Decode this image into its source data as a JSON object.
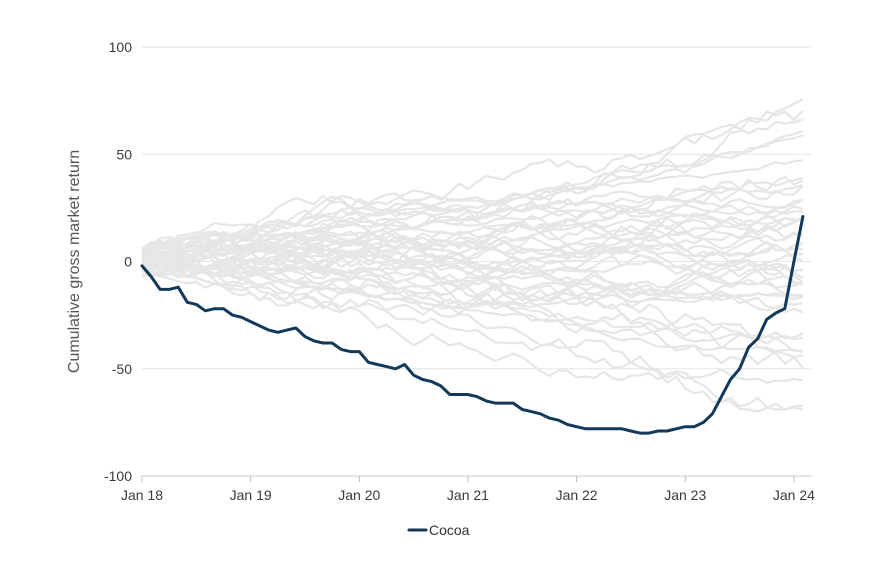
{
  "chart_data": {
    "type": "line",
    "title": "",
    "xlabel": "",
    "ylabel": "Cumulative gross market return",
    "x_ticks": [
      "Jan 18",
      "Jan 19",
      "Jan 20",
      "Jan 21",
      "Jan 22",
      "Jan 23",
      "Jan 24"
    ],
    "y_ticks": [
      100,
      50,
      0,
      -50,
      -100
    ],
    "xlim": [
      "2018-01",
      "2024-03"
    ],
    "ylim": [
      -100,
      100
    ],
    "grid": "horizontal",
    "legend": {
      "position": "bottom-center",
      "entries": [
        "Cocoa"
      ]
    },
    "colors": {
      "highlight": "#12385a",
      "background_series": "#e6e6e6",
      "grid": "#e6e6e6"
    },
    "background_series_note_count": 45,
    "series": [
      {
        "name": "Cocoa",
        "highlight": true,
        "points": [
          [
            "2018-01",
            -2
          ],
          [
            "2018-02",
            -7
          ],
          [
            "2018-03",
            -13
          ],
          [
            "2018-04",
            -13
          ],
          [
            "2018-05",
            -12
          ],
          [
            "2018-06",
            -19
          ],
          [
            "2018-07",
            -20
          ],
          [
            "2018-08",
            -23
          ],
          [
            "2018-09",
            -22
          ],
          [
            "2018-10",
            -22
          ],
          [
            "2018-11",
            -25
          ],
          [
            "2018-12",
            -26
          ],
          [
            "2019-01",
            -28
          ],
          [
            "2019-02",
            -30
          ],
          [
            "2019-03",
            -32
          ],
          [
            "2019-04",
            -33
          ],
          [
            "2019-05",
            -32
          ],
          [
            "2019-06",
            -31
          ],
          [
            "2019-07",
            -35
          ],
          [
            "2019-08",
            -37
          ],
          [
            "2019-09",
            -38
          ],
          [
            "2019-10",
            -38
          ],
          [
            "2019-11",
            -41
          ],
          [
            "2019-12",
            -42
          ],
          [
            "2020-01",
            -42
          ],
          [
            "2020-02",
            -47
          ],
          [
            "2020-03",
            -48
          ],
          [
            "2020-04",
            -49
          ],
          [
            "2020-05",
            -50
          ],
          [
            "2020-06",
            -48
          ],
          [
            "2020-07",
            -53
          ],
          [
            "2020-08",
            -55
          ],
          [
            "2020-09",
            -56
          ],
          [
            "2020-10",
            -58
          ],
          [
            "2020-11",
            -62
          ],
          [
            "2020-12",
            -62
          ],
          [
            "2021-01",
            -62
          ],
          [
            "2021-02",
            -63
          ],
          [
            "2021-03",
            -65
          ],
          [
            "2021-04",
            -66
          ],
          [
            "2021-05",
            -66
          ],
          [
            "2021-06",
            -66
          ],
          [
            "2021-07",
            -69
          ],
          [
            "2021-08",
            -70
          ],
          [
            "2021-09",
            -71
          ],
          [
            "2021-10",
            -73
          ],
          [
            "2021-11",
            -74
          ],
          [
            "2021-12",
            -76
          ],
          [
            "2022-01",
            -77
          ],
          [
            "2022-02",
            -78
          ],
          [
            "2022-03",
            -78
          ],
          [
            "2022-04",
            -78
          ],
          [
            "2022-05",
            -78
          ],
          [
            "2022-06",
            -78
          ],
          [
            "2022-07",
            -79
          ],
          [
            "2022-08",
            -80
          ],
          [
            "2022-09",
            -80
          ],
          [
            "2022-10",
            -79
          ],
          [
            "2022-11",
            -79
          ],
          [
            "2022-12",
            -78
          ],
          [
            "2023-01",
            -77
          ],
          [
            "2023-02",
            -77
          ],
          [
            "2023-03",
            -75
          ],
          [
            "2023-04",
            -71
          ],
          [
            "2023-05",
            -63
          ],
          [
            "2023-06",
            -55
          ],
          [
            "2023-07",
            -50
          ],
          [
            "2023-08",
            -40
          ],
          [
            "2023-09",
            -36
          ],
          [
            "2023-10",
            -27
          ],
          [
            "2023-11",
            -24
          ],
          [
            "2023-12",
            -22
          ],
          [
            "2024-01",
            0
          ],
          [
            "2024-02",
            21
          ]
        ]
      }
    ]
  }
}
